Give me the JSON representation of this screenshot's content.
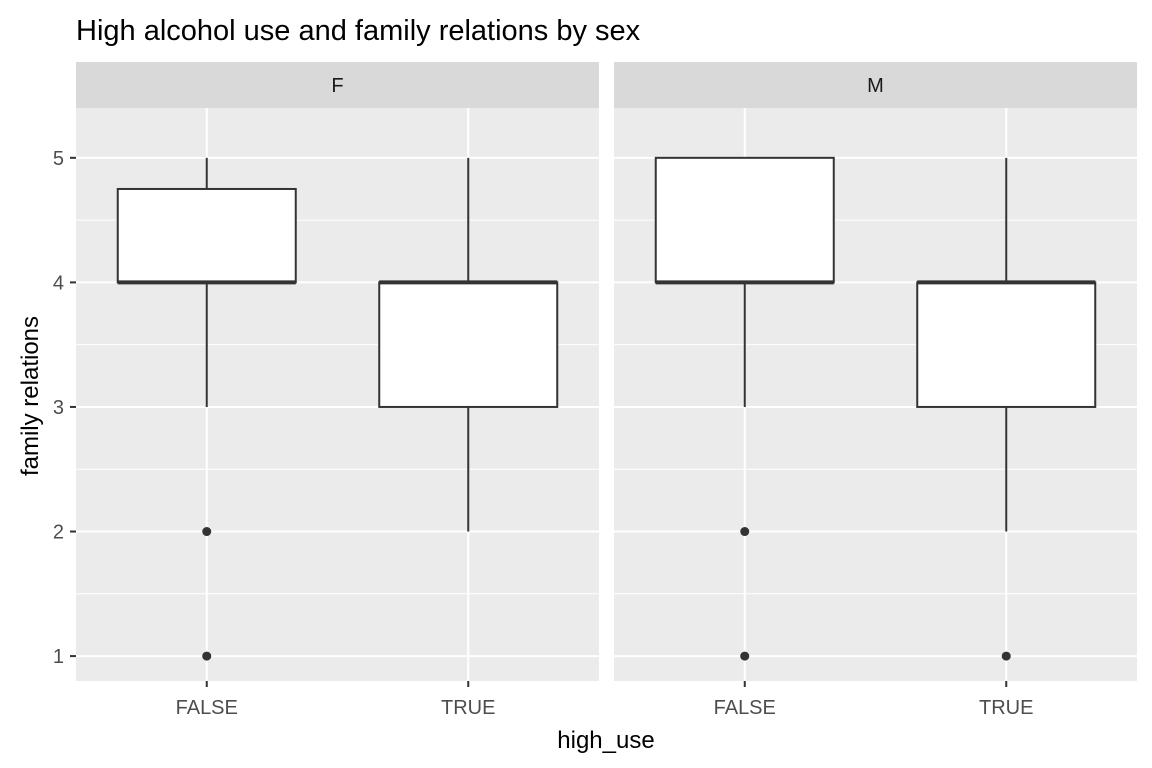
{
  "chart_data": {
    "type": "boxplot",
    "title": "High alcohol use and family relations by sex",
    "xlabel": "high_use",
    "ylabel": "family relations",
    "categories": [
      "FALSE",
      "TRUE"
    ],
    "ylim": [
      0.8,
      5.4
    ],
    "yticks": [
      1,
      2,
      3,
      4,
      5
    ],
    "grid": true,
    "facets": [
      {
        "label": "F",
        "boxes": [
          {
            "category": "FALSE",
            "whisker_low": 3,
            "q1": 4,
            "median": 4,
            "q3": 4.75,
            "whisker_high": 5,
            "outliers": [
              2,
              1
            ]
          },
          {
            "category": "TRUE",
            "whisker_low": 2,
            "q1": 3,
            "median": 4,
            "q3": 4,
            "whisker_high": 5,
            "outliers": []
          }
        ]
      },
      {
        "label": "M",
        "boxes": [
          {
            "category": "FALSE",
            "whisker_low": 3,
            "q1": 4,
            "median": 4,
            "q3": 5,
            "whisker_high": 5,
            "outliers": [
              2,
              1
            ]
          },
          {
            "category": "TRUE",
            "whisker_low": 2,
            "q1": 3,
            "median": 4,
            "q3": 4,
            "whisker_high": 5,
            "outliers": [
              1
            ]
          }
        ]
      }
    ],
    "colors": {
      "panel_bg": "#EBEBEB",
      "strip_bg": "#D9D9D9",
      "grid": "#FFFFFF",
      "box_fill": "#FFFFFF",
      "box_line": "#333333",
      "outlier": "#333333",
      "tick_text": "#4D4D4D"
    }
  }
}
